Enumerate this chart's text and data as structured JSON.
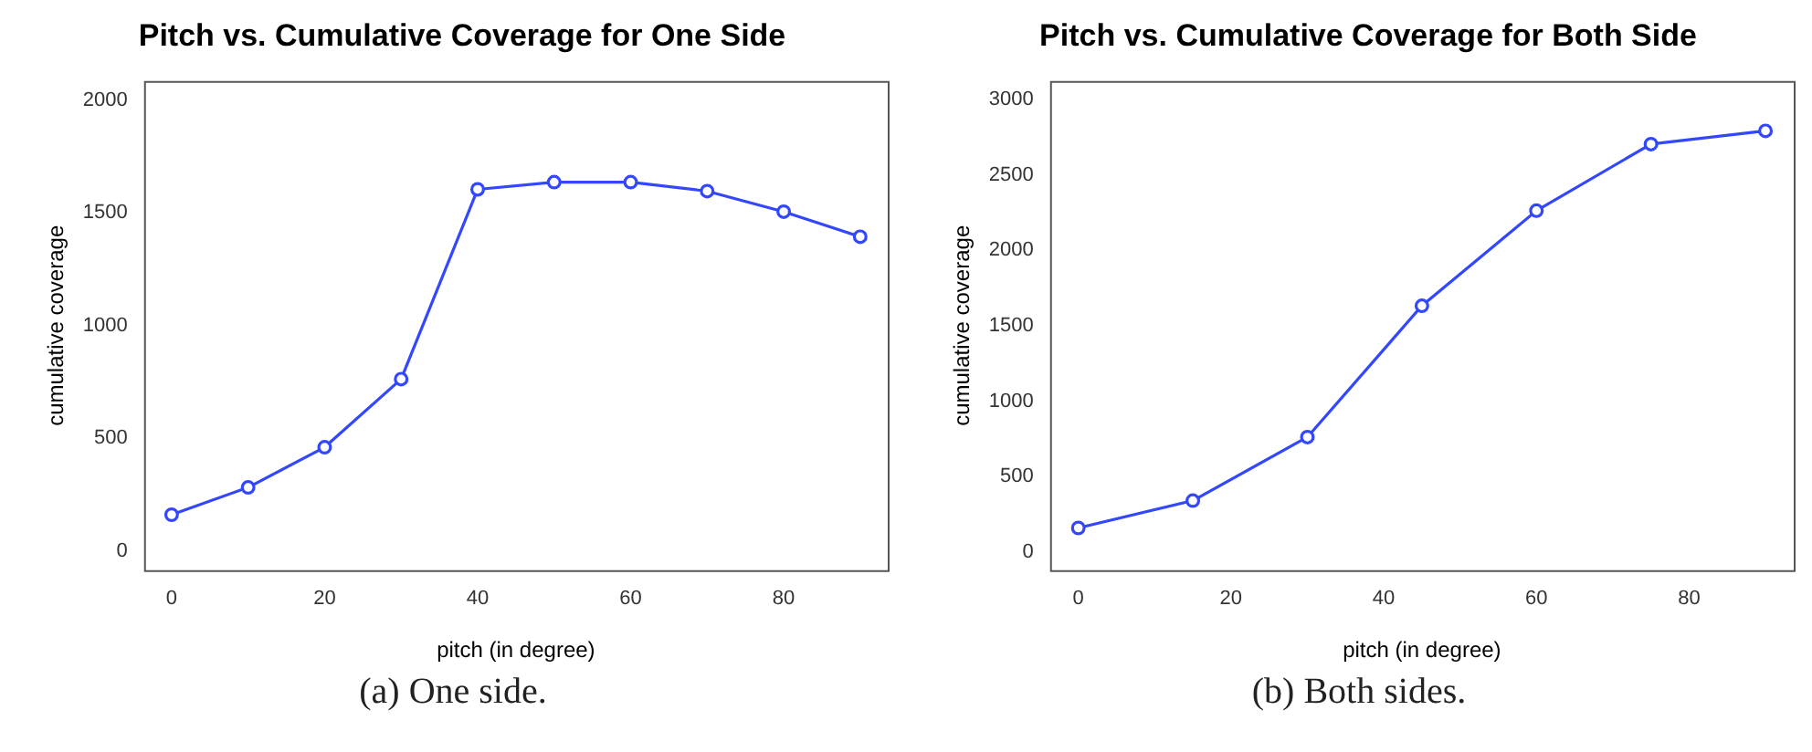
{
  "chart_data": [
    {
      "type": "line",
      "title": "Pitch vs. Cumulative Coverage for One Side",
      "xlabel": "pitch (in degree)",
      "ylabel": "cumulative coverage",
      "x": [
        0,
        10,
        20,
        30,
        40,
        50,
        60,
        70,
        80,
        90
      ],
      "series": [
        {
          "color": "#3347ff",
          "values": [
            162,
            283,
            461,
            763,
            1604,
            1636,
            1636,
            1596,
            1505,
            1394
          ]
        }
      ],
      "xlim": [
        -3.6,
        93.6
      ],
      "ylim": [
        -84,
        2084
      ],
      "xticks": [
        0,
        20,
        40,
        60,
        80
      ],
      "yticks": [
        0,
        500,
        1000,
        1500,
        2000
      ],
      "marker": "circle",
      "grid": false,
      "legend": false,
      "annotations": [
        "(a) One side."
      ]
    },
    {
      "type": "line",
      "title": "Pitch vs. Cumulative Coverage for Both Side",
      "xlabel": "pitch (in degree)",
      "ylabel": "cumulative coverage",
      "x": [
        0,
        15,
        30,
        45,
        60,
        75,
        90
      ],
      "series": [
        {
          "color": "#3347ff",
          "values": [
            160,
            341,
            762,
            1632,
            2262,
            2703,
            2791
          ]
        }
      ],
      "xlim": [
        -3.7,
        93.7
      ],
      "ylim": [
        -120,
        3121
      ],
      "xticks": [
        0,
        20,
        40,
        60,
        80
      ],
      "yticks": [
        0,
        500,
        1000,
        1500,
        2000,
        2500,
        3000
      ],
      "marker": "circle",
      "grid": false,
      "legend": false,
      "annotations": [
        "(b) Both sides."
      ]
    }
  ]
}
